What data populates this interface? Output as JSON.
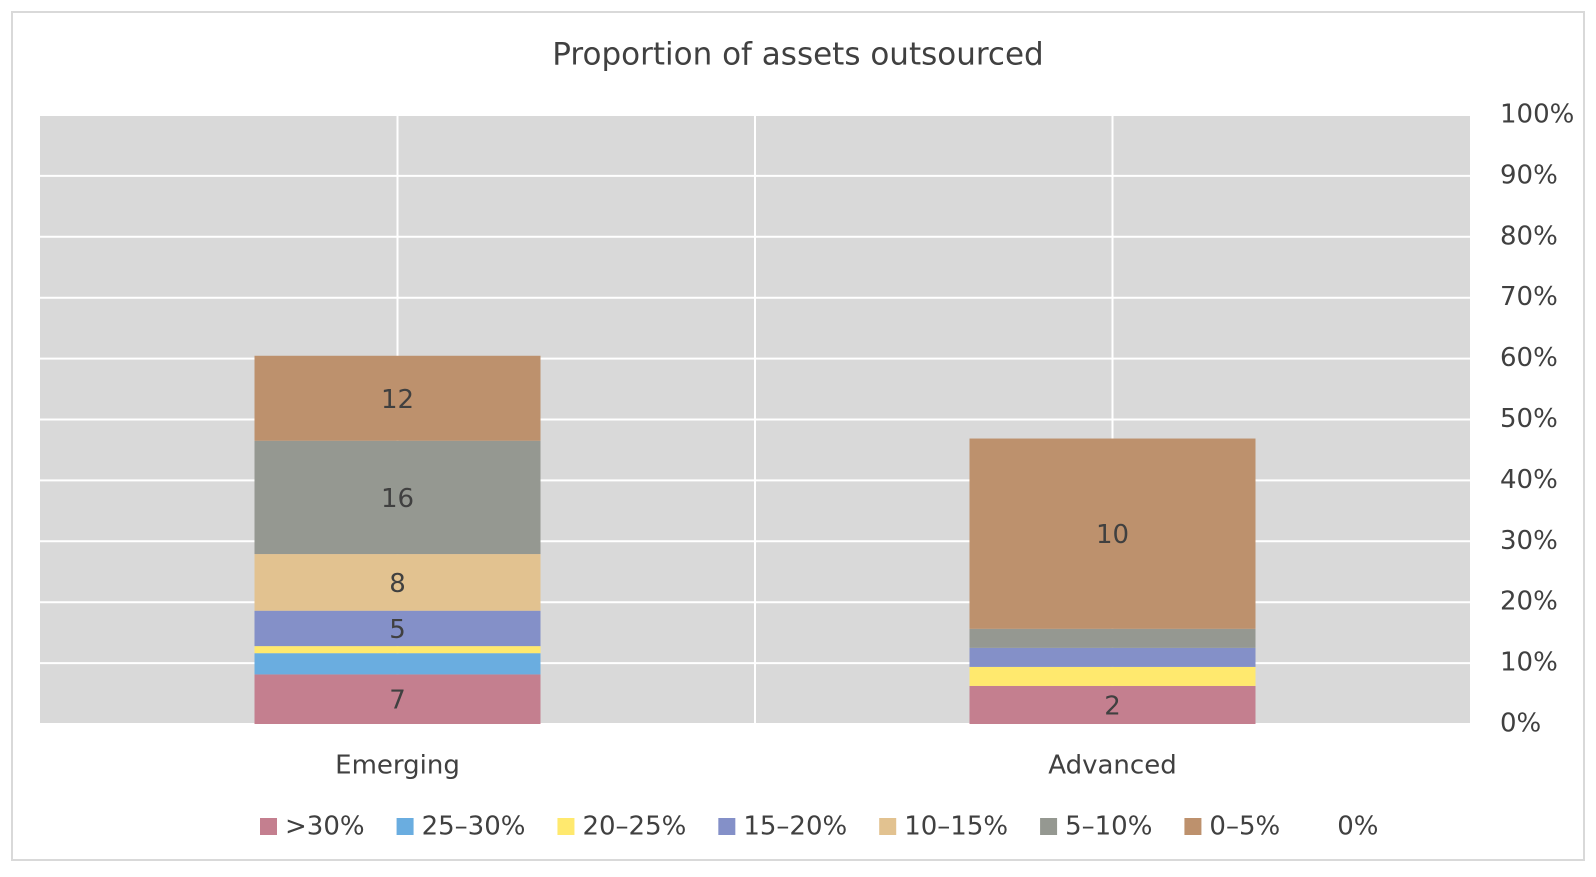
{
  "chart_data": {
    "type": "stacked-bar",
    "stacking": "percent",
    "title": "Proportion of assets outsourced",
    "categories": [
      "Emerging",
      "Advanced"
    ],
    "series": [
      {
        "name": ">30%",
        "color": "#c47f8f",
        "values": [
          7,
          2
        ]
      },
      {
        "name": "25–30%",
        "color": "#6aade0",
        "values": [
          3,
          0
        ]
      },
      {
        "name": "20–25%",
        "color": "#ffe96e",
        "values": [
          1,
          1
        ]
      },
      {
        "name": "15–20%",
        "color": "#8490c8",
        "values": [
          5,
          1
        ]
      },
      {
        "name": "10–15%",
        "color": "#e2c290",
        "values": [
          8,
          0
        ]
      },
      {
        "name": "5–10%",
        "color": "#959891",
        "values": [
          16,
          1
        ]
      },
      {
        "name": "0–5%",
        "color": "#bd916d",
        "values": [
          12,
          10
        ]
      },
      {
        "name": "0%",
        "color": "none",
        "values": [
          34,
          17
        ]
      }
    ],
    "ylim": [
      0,
      100
    ],
    "yticks": [
      {
        "value": 0,
        "label": "0%"
      },
      {
        "value": 10,
        "label": "10%"
      },
      {
        "value": 20,
        "label": "20%"
      },
      {
        "value": 30,
        "label": "30%"
      },
      {
        "value": 40,
        "label": "40%"
      },
      {
        "value": 50,
        "label": "50%"
      },
      {
        "value": 60,
        "label": "60%"
      },
      {
        "value": 70,
        "label": "70%"
      },
      {
        "value": 80,
        "label": "80%"
      },
      {
        "value": 90,
        "label": "90%"
      },
      {
        "value": 100,
        "label": "100%"
      }
    ],
    "y_axis_side": "right",
    "grid": true,
    "legend": "bottom"
  }
}
